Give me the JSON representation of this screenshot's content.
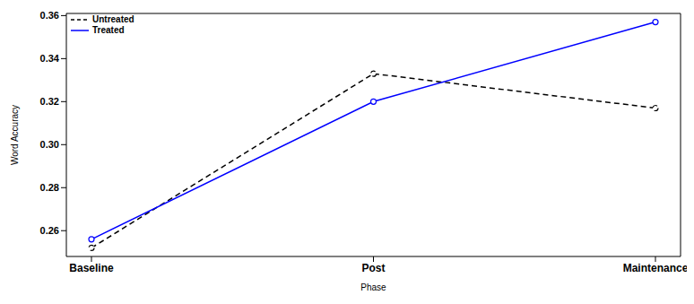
{
  "chart_data": {
    "type": "line",
    "x_label": "Phase",
    "y_label": "Word Accuracy",
    "categories": [
      "Baseline",
      "Post",
      "Maintenance"
    ],
    "series": [
      {
        "name": "Untreated",
        "color": "#000000",
        "line_style": "dashed",
        "marker": "circle",
        "values": [
          0.252,
          0.333,
          0.317
        ]
      },
      {
        "name": "Treated",
        "color": "#0000ff",
        "line_style": "solid",
        "marker": "circle",
        "values": [
          0.256,
          0.32,
          0.357
        ]
      }
    ],
    "ylim": [
      0.248,
      0.361
    ],
    "yticks": [
      0.26,
      0.28,
      {
        "value": 0.3,
        "label": "0.30"
      },
      0.32,
      0.34,
      0.36
    ],
    "legend": "upper left"
  }
}
